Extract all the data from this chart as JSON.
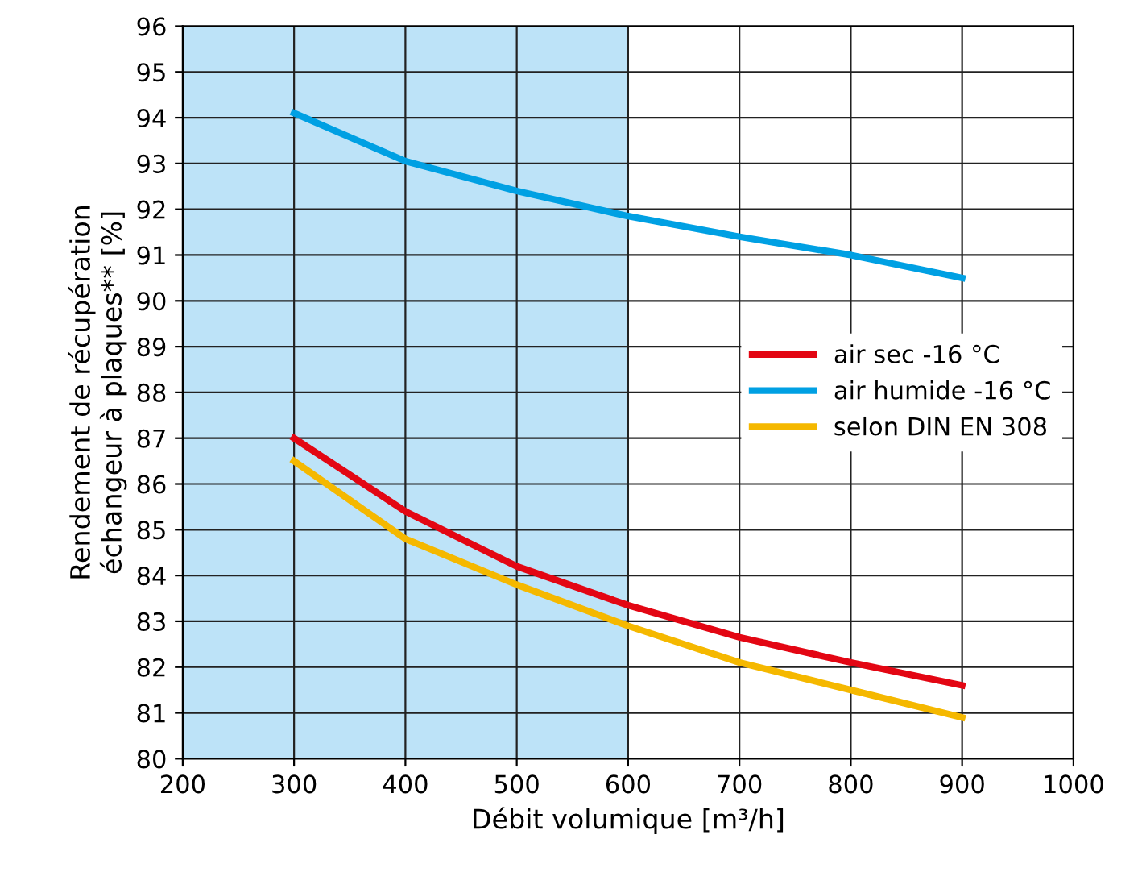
{
  "chart_data": {
    "type": "line",
    "xlabel": "Débit volumique [m³/h]",
    "ylabel": "Rendement de récupération\néchangeur à plaques** [%]",
    "x": [
      300,
      400,
      500,
      600,
      700,
      800,
      900
    ],
    "series": [
      {
        "name": "air sec -16 °C",
        "color": "#e30613",
        "values": [
          87.0,
          85.4,
          84.2,
          83.35,
          82.65,
          82.1,
          81.6
        ]
      },
      {
        "name": "air humide -16 °C",
        "color": "#00a0e3",
        "values": [
          94.1,
          93.05,
          92.4,
          91.85,
          91.4,
          91.0,
          90.5
        ]
      },
      {
        "name": "selon DIN EN 308",
        "color": "#f5b800",
        "values": [
          86.5,
          84.8,
          83.8,
          82.9,
          82.1,
          81.5,
          80.9
        ]
      }
    ],
    "xlim": [
      200,
      1000
    ],
    "xticks": [
      200,
      300,
      400,
      500,
      600,
      700,
      800,
      900,
      1000
    ],
    "ylim": [
      80,
      96
    ],
    "yticks": [
      80,
      81,
      82,
      83,
      84,
      85,
      86,
      87,
      88,
      89,
      90,
      91,
      92,
      93,
      94,
      95,
      96
    ],
    "bands": [
      {
        "axis": "x",
        "from": 200,
        "to": 600,
        "color": "#bde3f8"
      }
    ],
    "grid": true,
    "legend": "right",
    "marker": "none",
    "line_style": "solid"
  }
}
